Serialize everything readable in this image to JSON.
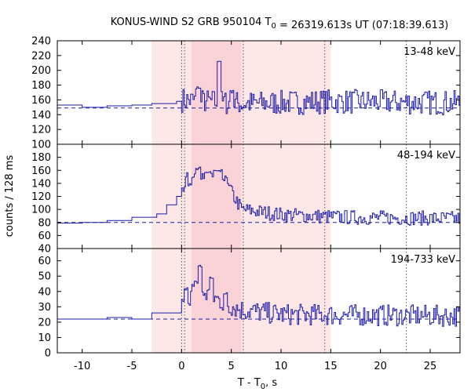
{
  "chart_data": {
    "type": "line",
    "title": "KONUS-WIND S2 GRB 950104 T₀ = 26319.613s UT (07:18:39.613)",
    "xlabel": "T - T₀, s",
    "ylabel": "counts / 128 ms",
    "xlim": [
      -12.5,
      28
    ],
    "x_ticks": [
      "-10",
      "-5",
      "0",
      "5",
      "10",
      "15",
      "20",
      "25"
    ],
    "x_tick_values": [
      -10,
      -5,
      0,
      5,
      10,
      15,
      20,
      25
    ],
    "intervals": {
      "light": [
        -3.0,
        15.0
      ],
      "dark": [
        1.0,
        6.0
      ]
    },
    "vlines": [
      0.0,
      0.3,
      6.2,
      14.4,
      22.6
    ],
    "colors": {
      "line": "#1c1ca8",
      "light_fill": "#fde7e7",
      "dark_fill": "#fbd3d6",
      "vline": "#555555"
    },
    "panels": [
      {
        "label": "13-48 keV",
        "ylim": [
          100,
          240
        ],
        "y_ticks": [
          "100",
          "120",
          "140",
          "160",
          "180",
          "200",
          "220",
          "240"
        ],
        "y_tick_values": [
          100,
          120,
          140,
          160,
          180,
          200,
          220,
          240
        ],
        "background": 149,
        "coarse_steps": [
          [
            -12.5,
            153
          ],
          [
            -10.0,
            150
          ],
          [
            -7.5,
            152
          ],
          [
            -5.0,
            153
          ],
          [
            -3.0,
            155
          ],
          [
            -0.5,
            158
          ],
          [
            0.0,
            158
          ]
        ],
        "peaks": [
          [
            1.6,
            180
          ],
          [
            3.7,
            214
          ],
          [
            5.0,
            175
          ]
        ],
        "noise_amp": 12,
        "level_segments": [
          [
            0.0,
            160
          ],
          [
            6.0,
            155
          ],
          [
            15.0,
            158
          ],
          [
            28.0,
            156
          ]
        ]
      },
      {
        "label": "48-194 keV",
        "ylim": [
          40,
          200
        ],
        "y_ticks": [
          "40",
          "60",
          "80",
          "100",
          "120",
          "140",
          "160",
          "180"
        ],
        "y_tick_values": [
          40,
          60,
          80,
          100,
          120,
          140,
          160,
          180
        ],
        "background": 80,
        "coarse_steps": [
          [
            -12.5,
            79
          ],
          [
            -10.0,
            80
          ],
          [
            -7.5,
            83
          ],
          [
            -5.0,
            88
          ],
          [
            -2.5,
            93
          ],
          [
            -1.5,
            107
          ],
          [
            -0.5,
            120
          ],
          [
            0.0,
            128
          ]
        ],
        "peaks": [
          [
            0.8,
            140
          ],
          [
            1.6,
            165
          ],
          [
            2.5,
            160
          ],
          [
            3.4,
            162
          ],
          [
            4.7,
            140
          ]
        ],
        "noise_amp": 8,
        "level_segments": [
          [
            0.0,
            135
          ],
          [
            1.2,
            160
          ],
          [
            4.0,
            150
          ],
          [
            6.0,
            100
          ],
          [
            10.0,
            92
          ],
          [
            16.0,
            88
          ],
          [
            28.0,
            86
          ]
        ]
      },
      {
        "label": "194-733 keV",
        "ylim": [
          0,
          68
        ],
        "y_ticks": [
          "0",
          "10",
          "20",
          "30",
          "40",
          "50",
          "60"
        ],
        "y_tick_values": [
          0,
          10,
          20,
          30,
          40,
          50,
          60
        ],
        "background": 22,
        "coarse_steps": [
          [
            -12.5,
            22
          ],
          [
            -10.0,
            22
          ],
          [
            -7.5,
            23
          ],
          [
            -5.0,
            22
          ],
          [
            -3.0,
            26
          ],
          [
            0.0,
            27
          ]
        ],
        "peaks": [
          [
            0.4,
            43
          ],
          [
            1.8,
            58
          ],
          [
            2.9,
            50
          ],
          [
            4.3,
            40
          ]
        ],
        "noise_amp": 5,
        "level_segments": [
          [
            0.0,
            30
          ],
          [
            1.2,
            42
          ],
          [
            4.5,
            32
          ],
          [
            6.0,
            28
          ],
          [
            10.0,
            25
          ],
          [
            28.0,
            24
          ]
        ]
      }
    ]
  }
}
